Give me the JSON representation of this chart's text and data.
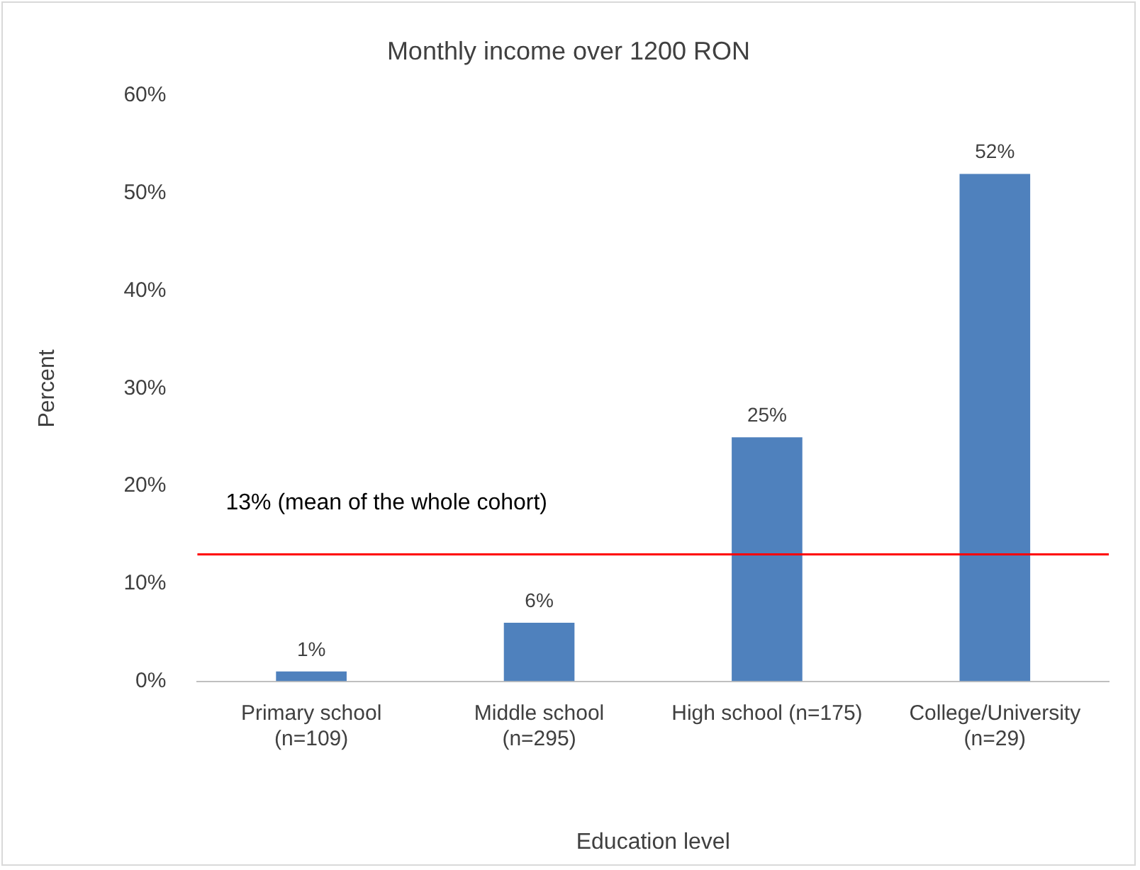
{
  "chart_data": {
    "type": "bar",
    "title": "Monthly income over 1200 RON",
    "xlabel": "Education level",
    "ylabel": "Percent",
    "categories": [
      "Primary school\n(n=109)",
      "Middle school\n(n=295)",
      "High school (n=175)",
      "College/University\n(n=29)"
    ],
    "values": [
      1,
      6,
      25,
      52
    ],
    "color": "#4f81bd",
    "value_labels": [
      "1%",
      "6%",
      "25%",
      "52%"
    ],
    "ylim": [
      0,
      60
    ],
    "yticks": [
      {
        "value": 0,
        "label": "0%"
      },
      {
        "value": 10,
        "label": "10%"
      },
      {
        "value": 20,
        "label": "20%"
      },
      {
        "value": 30,
        "label": "30%"
      },
      {
        "value": 40,
        "label": "40%"
      },
      {
        "value": 50,
        "label": "50%"
      },
      {
        "value": 60,
        "label": "60%"
      }
    ],
    "ref_lines": [
      {
        "axis": "y",
        "value": 13,
        "label": "13% (mean of the whole cohort)",
        "color": "#ff0000"
      }
    ],
    "grid": false,
    "legend": false
  }
}
